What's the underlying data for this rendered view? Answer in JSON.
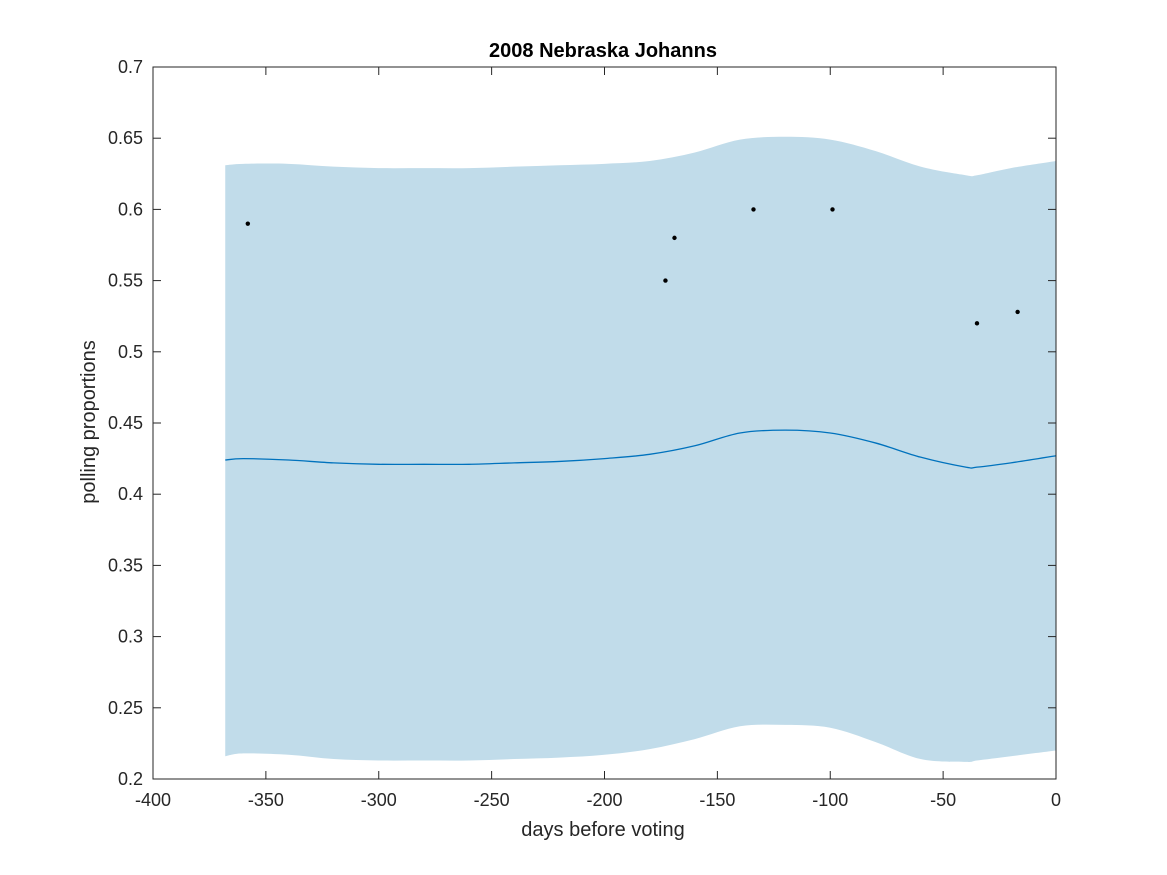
{
  "chart_data": {
    "type": "line",
    "title": "2008 Nebraska Johanns",
    "xlabel": "days before voting",
    "ylabel": "polling proportions",
    "xlim": [
      -400,
      0
    ],
    "ylim": [
      0.2,
      0.7
    ],
    "xticks": [
      -400,
      -350,
      -300,
      -250,
      -200,
      -150,
      -100,
      -50,
      0
    ],
    "yticks": [
      0.2,
      0.25,
      0.3,
      0.35,
      0.4,
      0.45,
      0.5,
      0.55,
      0.6,
      0.65,
      0.7
    ],
    "xtick_labels": [
      "-400",
      "-350",
      "-300",
      "-250",
      "-200",
      "-150",
      "-100",
      "-50",
      "0"
    ],
    "ytick_labels": [
      "0.2",
      "0.25",
      "0.3",
      "0.35",
      "0.4",
      "0.45",
      "0.5",
      "0.55",
      "0.6",
      "0.65",
      "0.7"
    ],
    "grid": false,
    "band": {
      "x": [
        -368,
        -360,
        -340,
        -320,
        -300,
        -280,
        -260,
        -240,
        -220,
        -200,
        -180,
        -160,
        -140,
        -120,
        -100,
        -80,
        -60,
        -40,
        -35,
        -20,
        0
      ],
      "upper": [
        0.631,
        0.632,
        0.632,
        0.63,
        0.629,
        0.629,
        0.629,
        0.63,
        0.631,
        0.632,
        0.634,
        0.64,
        0.649,
        0.651,
        0.649,
        0.641,
        0.63,
        0.624,
        0.624,
        0.629,
        0.634
      ],
      "lower": [
        0.216,
        0.218,
        0.217,
        0.214,
        0.213,
        0.213,
        0.213,
        0.214,
        0.215,
        0.217,
        0.221,
        0.228,
        0.237,
        0.238,
        0.236,
        0.226,
        0.214,
        0.212,
        0.213,
        0.216,
        0.22
      ],
      "color": "#c1dcea"
    },
    "line": {
      "x": [
        -368,
        -360,
        -340,
        -320,
        -300,
        -280,
        -260,
        -240,
        -220,
        -200,
        -180,
        -160,
        -140,
        -120,
        -100,
        -80,
        -60,
        -40,
        -35,
        -20,
        0
      ],
      "y": [
        0.424,
        0.425,
        0.424,
        0.422,
        0.421,
        0.421,
        0.421,
        0.422,
        0.423,
        0.425,
        0.428,
        0.434,
        0.443,
        0.445,
        0.443,
        0.436,
        0.426,
        0.419,
        0.419,
        0.422,
        0.427
      ],
      "color": "#0072bd"
    },
    "points": {
      "x": [
        -358,
        -173,
        -169,
        -134,
        -99,
        -35,
        -17
      ],
      "y": [
        0.59,
        0.55,
        0.58,
        0.6,
        0.6,
        0.52,
        0.528
      ],
      "color": "#000000"
    }
  }
}
